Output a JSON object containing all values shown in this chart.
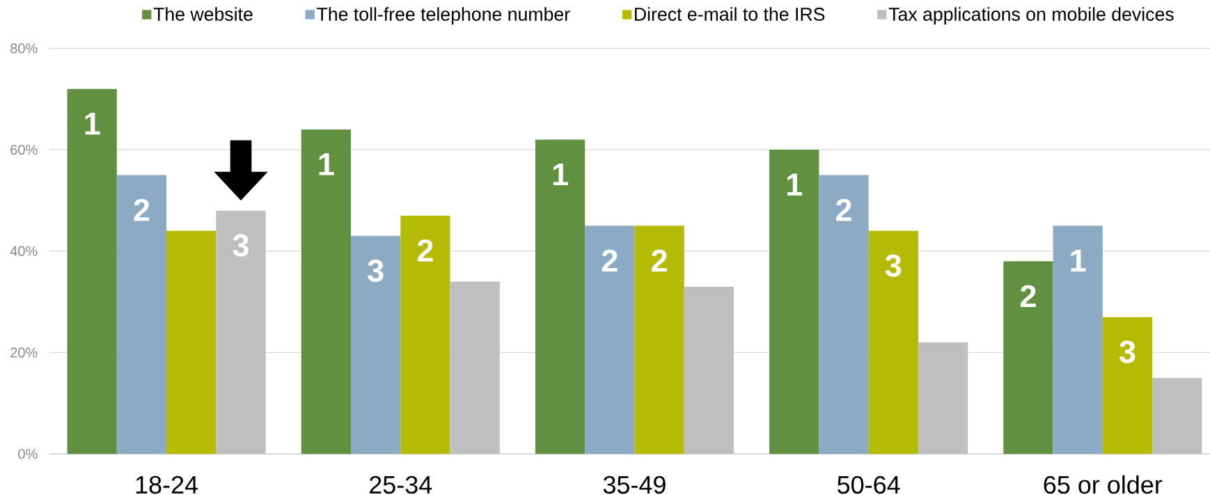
{
  "chart_data": {
    "type": "bar",
    "categories": [
      "18-24",
      "25-34",
      "35-49",
      "50-64",
      "65 or older"
    ],
    "series": [
      {
        "name": "The website",
        "color": "#619140",
        "values": [
          72,
          64,
          62,
          60,
          38
        ]
      },
      {
        "name": "The toll-free telephone number",
        "color": "#8caac3",
        "values": [
          55,
          43,
          45,
          55,
          45
        ]
      },
      {
        "name": "Direct e-mail to the IRS",
        "color": "#b5bb05",
        "values": [
          44,
          47,
          45,
          44,
          27
        ]
      },
      {
        "name": "Tax applications on mobile devices",
        "color": "#bfbfbf",
        "values": [
          48,
          34,
          33,
          22,
          15
        ]
      }
    ],
    "annotations": [
      "1",
      "2",
      "3",
      "1",
      "3",
      "2",
      "1",
      "2",
      "2",
      "1",
      "2",
      "3",
      "2",
      "1",
      "3"
    ],
    "ylim": [
      0,
      80
    ],
    "yticks": [
      {
        "value": 0,
        "label": "0%"
      },
      {
        "value": 20,
        "label": "20%"
      },
      {
        "value": 40,
        "label": "40%"
      },
      {
        "value": 60,
        "label": "60%"
      },
      {
        "value": 80,
        "label": "80%"
      }
    ],
    "grid": "y",
    "legend": "top"
  }
}
